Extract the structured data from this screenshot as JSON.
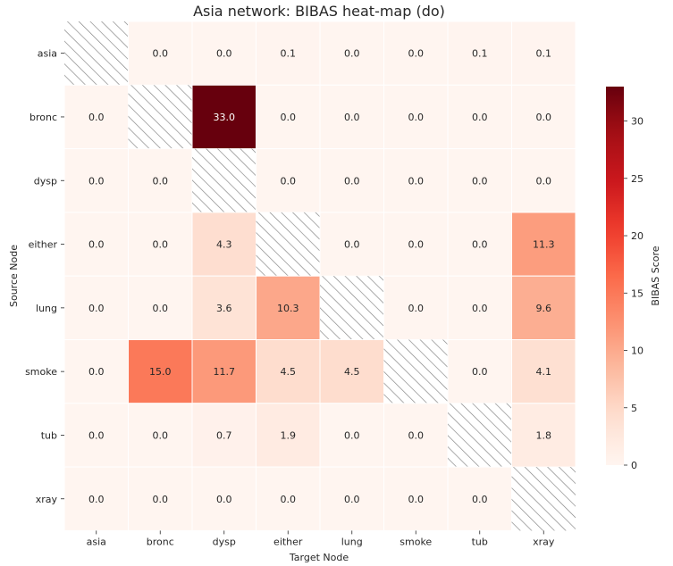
{
  "chart_data": {
    "type": "heatmap",
    "title": "Asia network: BIBAS heat-map (do)",
    "xlabel": "Target Node",
    "ylabel": "Source Node",
    "x_categories": [
      "asia",
      "bronc",
      "dysp",
      "either",
      "lung",
      "smoke",
      "tub",
      "xray"
    ],
    "y_categories": [
      "asia",
      "bronc",
      "dysp",
      "either",
      "lung",
      "smoke",
      "tub",
      "xray"
    ],
    "values": [
      [
        null,
        0.0,
        0.0,
        0.1,
        0.0,
        0.0,
        0.1,
        0.1
      ],
      [
        0.0,
        null,
        33.0,
        0.0,
        0.0,
        0.0,
        0.0,
        0.0
      ],
      [
        0.0,
        0.0,
        null,
        0.0,
        0.0,
        0.0,
        0.0,
        0.0
      ],
      [
        0.0,
        0.0,
        4.3,
        null,
        0.0,
        0.0,
        0.0,
        11.3
      ],
      [
        0.0,
        0.0,
        3.6,
        10.3,
        null,
        0.0,
        0.0,
        9.6
      ],
      [
        0.0,
        15.0,
        11.7,
        4.5,
        4.5,
        null,
        0.0,
        4.1
      ],
      [
        0.0,
        0.0,
        0.7,
        1.9,
        0.0,
        0.0,
        null,
        1.8
      ],
      [
        0.0,
        0.0,
        0.0,
        0.0,
        0.0,
        0.0,
        0.0,
        null
      ]
    ],
    "missing_pattern": "diagonal-hatch",
    "colormap": "Reds",
    "colorbar": {
      "label": "BIBAS Score",
      "range": [
        0,
        33
      ],
      "ticks": [
        0,
        5,
        10,
        15,
        20,
        25,
        30
      ]
    },
    "grid": false,
    "legend": "colorbar-right"
  }
}
